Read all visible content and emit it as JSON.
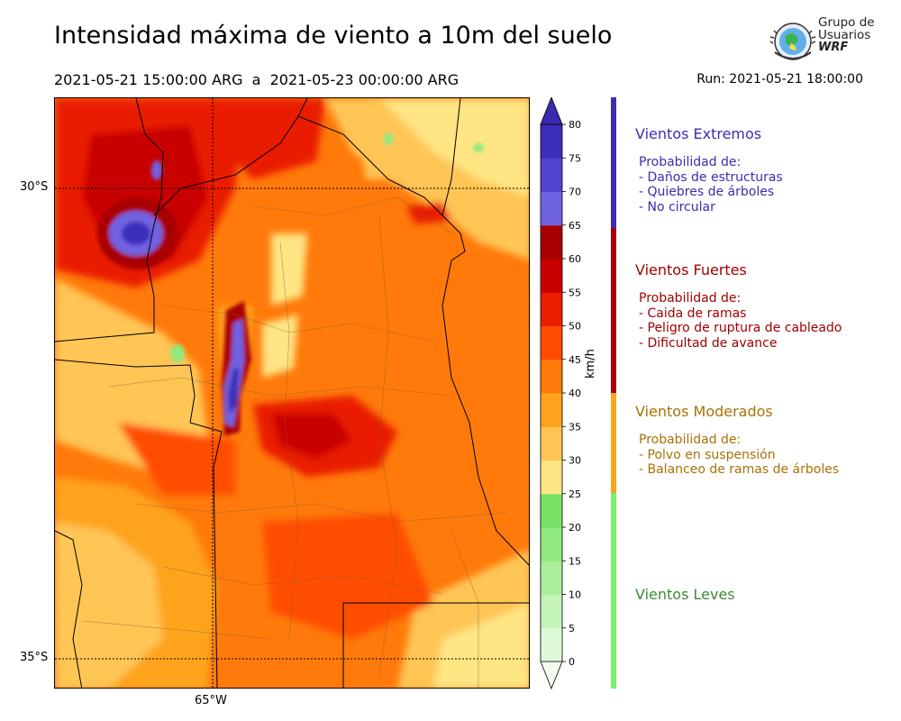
{
  "header": {
    "title": "Intensidad máxima de viento a 10m del suelo",
    "period": "2021-05-21 15:00:00 ARG  a  2021-05-23 00:00:00 ARG",
    "run": "Run: 2021-05-21 18:00:00"
  },
  "logo": {
    "line1": "Grupo de",
    "line2": "Usuarios",
    "line3": "WRF"
  },
  "map": {
    "lat_labels": [
      "30°S",
      "35°S"
    ],
    "lon_labels": [
      "65°W"
    ]
  },
  "colorbar": {
    "unit": "km/h",
    "ticks": [
      "0",
      "5",
      "10",
      "15",
      "20",
      "25",
      "30",
      "35",
      "40",
      "45",
      "50",
      "55",
      "60",
      "65",
      "70",
      "75",
      "80"
    ],
    "colors": [
      "#f2fdf0",
      "#def9d8",
      "#c4f4b8",
      "#a9ef9a",
      "#8fe97e",
      "#77e265",
      "#ffe583",
      "#ffc554",
      "#ffa31c",
      "#ff7a0a",
      "#ff4d00",
      "#e91f00",
      "#c90000",
      "#a80000",
      "#6f62e0",
      "#5142cf",
      "#3c2dbb",
      "#3a2ab0"
    ]
  },
  "categories": [
    {
      "title": "Vientos Extremos",
      "color": "#3c2db0",
      "lines": [
        "Probabilidad de:",
        "- Daños de estructuras",
        "- Quiebres de árboles",
        "- No circular"
      ]
    },
    {
      "title": "Vientos Fuertes",
      "color": "#a00000",
      "lines": [
        "Probabilidad de:",
        "- Caida de ramas",
        "- Peligro de ruptura de cableado",
        "- Dificultad de avance"
      ]
    },
    {
      "title": "Vientos Moderados",
      "color": "#a87105",
      "lines": [
        "Probabilidad de:",
        "- Polvo en suspensión",
        "- Balanceo de ramas de árboles"
      ]
    },
    {
      "title": "Vientos Leves",
      "color": "#3f8a3a",
      "lines": []
    }
  ]
}
